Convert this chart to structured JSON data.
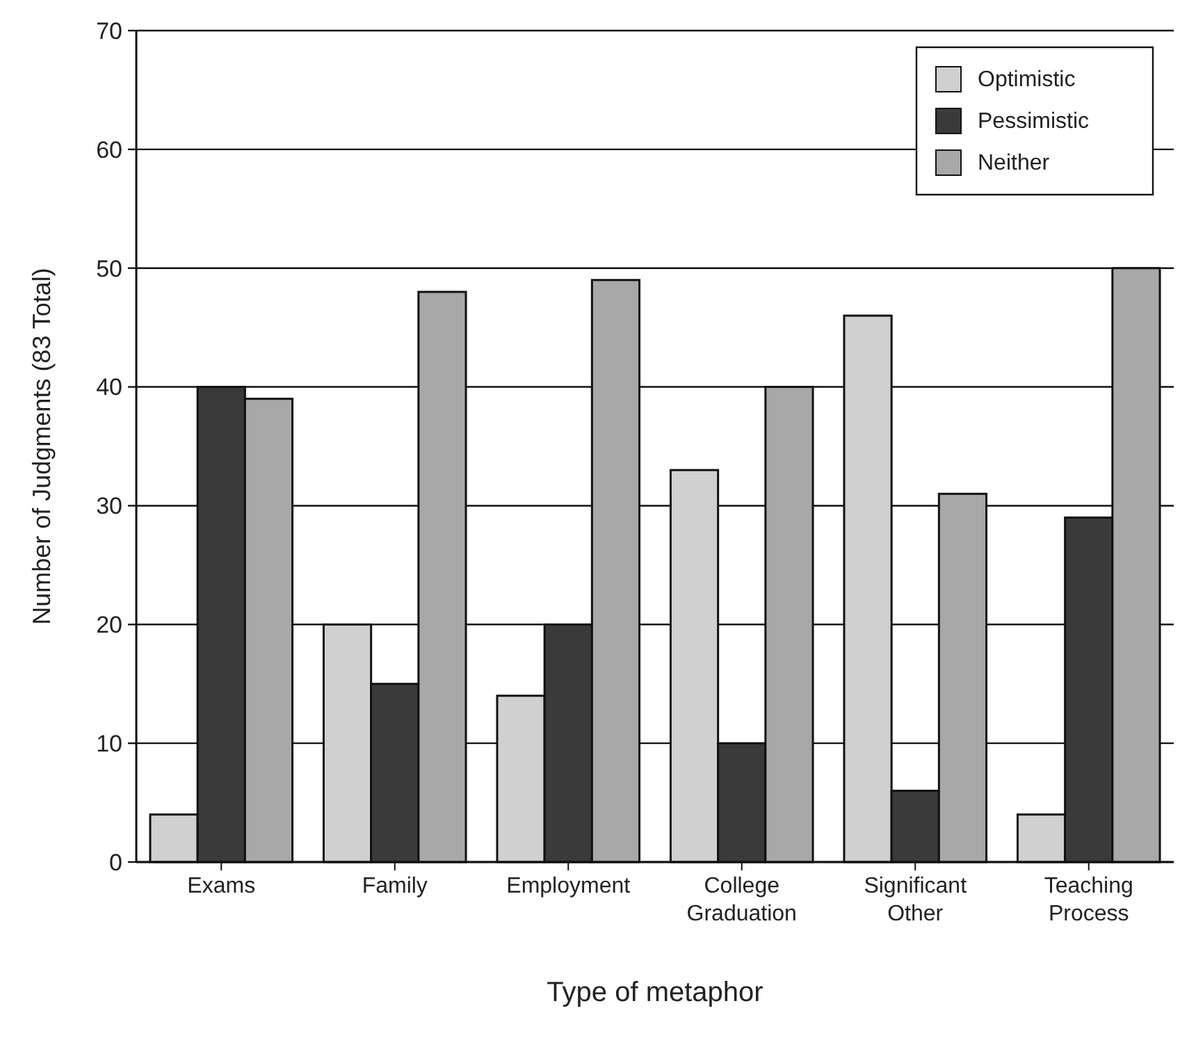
{
  "chart_data": {
    "type": "bar",
    "xlabel": "Type of metaphor",
    "ylabel": "Number of Judgments (83 Total)",
    "categories": [
      "Exams",
      "Family",
      "Employment",
      "College Graduation",
      "Significant Other",
      "Teaching Process"
    ],
    "series": [
      {
        "name": "Optimistic",
        "color": "#d0d0d0",
        "values": [
          4,
          20,
          14,
          33,
          46,
          4
        ]
      },
      {
        "name": "Pessimistic",
        "color": "#3a3a3a",
        "values": [
          40,
          15,
          20,
          10,
          6,
          29
        ]
      },
      {
        "name": "Neither",
        "color": "#a8a8a8",
        "values": [
          39,
          48,
          49,
          40,
          31,
          50
        ]
      }
    ],
    "ylim": [
      0,
      70
    ],
    "yticks": [
      0,
      10,
      20,
      30,
      40,
      50,
      60,
      70
    ],
    "grid": "y",
    "legend": "top right"
  }
}
